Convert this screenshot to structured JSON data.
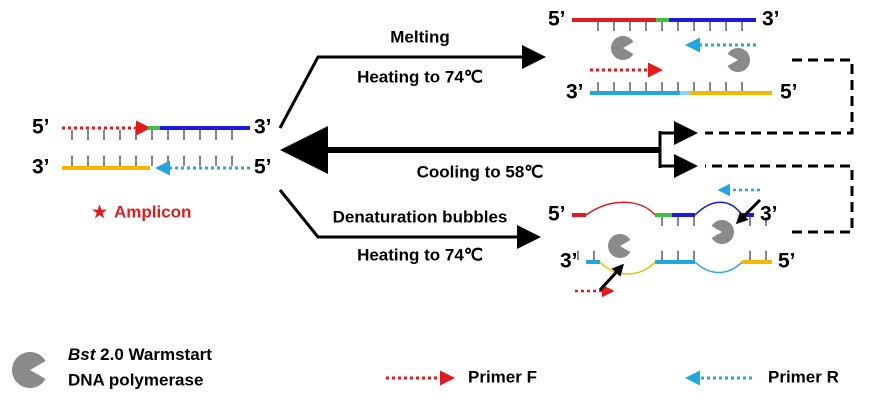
{
  "steps": {
    "melting": "Melting",
    "heating_top": "Heating to 74℃",
    "cooling": "Cooling to 58℃",
    "bubbles": "Denaturation bubbles",
    "heating_bottom": "Heating to 74℃"
  },
  "amplicon": {
    "star": "★",
    "label": "Amplicon"
  },
  "duplexes": {
    "amplicon": {
      "top": [
        "5’",
        "3’"
      ],
      "bottom": [
        "3’",
        "5’"
      ]
    },
    "melted": {
      "top": [
        "5’",
        "3’"
      ],
      "bottom": [
        "3’",
        "5’"
      ]
    },
    "bubbled": {
      "top": [
        "5’",
        "3’"
      ],
      "bottom": [
        "3’",
        "5’"
      ]
    }
  },
  "legend": {
    "polymerase_name": "Bst",
    "polymerase_version": "2.0 Warmstart",
    "polymerase_type": "DNA polymerase",
    "primer_f": "Primer F",
    "primer_r": "Primer R"
  }
}
